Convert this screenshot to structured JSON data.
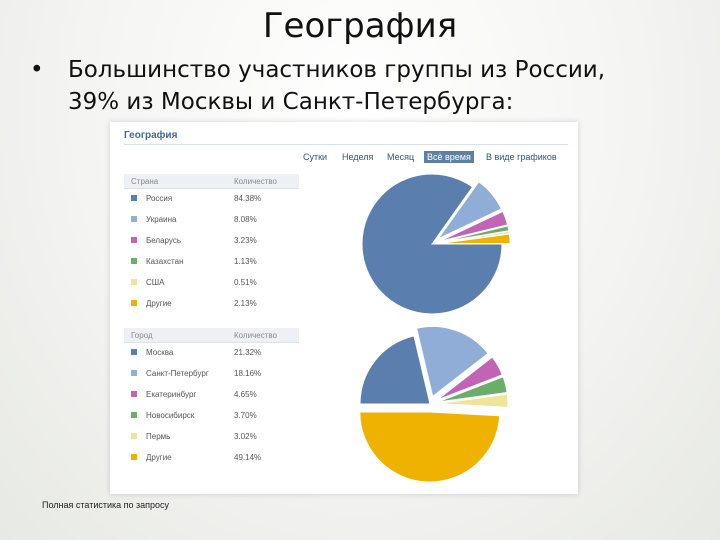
{
  "slide": {
    "title": "География",
    "bullet_line1": "Большинство участников группы из России,",
    "bullet_line2": "39% из Москвы и Санкт-Петербурга:"
  },
  "panel": {
    "title": "География",
    "tabs": [
      {
        "label": "Сутки",
        "active": false
      },
      {
        "label": "Неделя",
        "active": false
      },
      {
        "label": "Месяц",
        "active": false
      },
      {
        "label": "Всё время",
        "active": true
      },
      {
        "label": "В виде графиков",
        "active": false
      }
    ]
  },
  "countries": {
    "col1": "Страна",
    "col2": "Количество",
    "rows": [
      {
        "label": "Россия",
        "value": "84.38%",
        "color": "#5a7eae"
      },
      {
        "label": "Украина",
        "value": "8.08%",
        "color": "#8fadd6"
      },
      {
        "label": "Беларусь",
        "value": "3.23%",
        "color": "#c264b4"
      },
      {
        "label": "Казахстан",
        "value": "1.13%",
        "color": "#6aae6a"
      },
      {
        "label": "США",
        "value": "0.51%",
        "color": "#f0e39a"
      },
      {
        "label": "Другие",
        "value": "2.13%",
        "color": "#f0b200"
      }
    ]
  },
  "cities": {
    "col1": "Город",
    "col2": "Количество",
    "rows": [
      {
        "label": "Москва",
        "value": "21.32%",
        "color": "#5a7eae"
      },
      {
        "label": "Санкт-Петербург",
        "value": "18.16%",
        "color": "#8fadd6"
      },
      {
        "label": "Екатеринбург",
        "value": "4.65%",
        "color": "#c264b4"
      },
      {
        "label": "Новосибирск",
        "value": "3.70%",
        "color": "#6aae6a"
      },
      {
        "label": "Пермь",
        "value": "3.02%",
        "color": "#f0e39a"
      },
      {
        "label": "Другие",
        "value": "49.14%",
        "color": "#f0b200"
      }
    ]
  },
  "footer": "Полная статистика по запросу"
}
